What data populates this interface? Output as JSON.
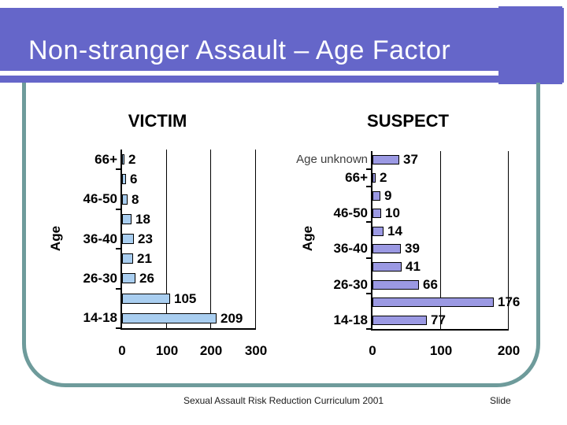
{
  "title": {
    "text": "Non-stranger Assault – Age Factor"
  },
  "footer": {
    "credit": "Sexual Assault Risk Reduction Curriculum 2001",
    "slide_label": "Slide"
  },
  "colors": {
    "title_bar": "#6566C9",
    "content_border": "#6E9B9B",
    "victim_bar": "#A9CEF0",
    "suspect_bar": "#9B99E3",
    "axis": "#000000"
  },
  "chart_data": [
    {
      "type": "bar",
      "orientation": "horizontal",
      "title": "VICTIM",
      "ylabel": "Age",
      "xlim": [
        0,
        300
      ],
      "xticks": [
        0,
        100,
        200,
        300
      ],
      "gridlines": "vertical",
      "categories": [
        "66+",
        "",
        "46-50",
        "",
        "36-40",
        "",
        "26-30",
        "",
        "14-18"
      ],
      "values": [
        2,
        6,
        8,
        18,
        23,
        21,
        26,
        105,
        209
      ],
      "bar_color": "#A9CEF0",
      "bar_border": "#000000",
      "value_labels_shown": true
    },
    {
      "type": "bar",
      "orientation": "horizontal",
      "title": "SUSPECT",
      "ylabel": "Age",
      "xlim": [
        0,
        200
      ],
      "xticks": [
        0,
        100,
        200
      ],
      "gridlines": "vertical",
      "categories": [
        "Age unknown",
        "66+",
        "",
        "46-50",
        "",
        "36-40",
        "",
        "26-30",
        "",
        "14-18"
      ],
      "values": [
        37,
        2,
        9,
        10,
        14,
        39,
        41,
        66,
        176,
        77
      ],
      "bar_color": "#9B99E3",
      "bar_border": "#000000",
      "plain_labels": [
        "Age unknown"
      ],
      "value_labels_shown": true
    }
  ]
}
